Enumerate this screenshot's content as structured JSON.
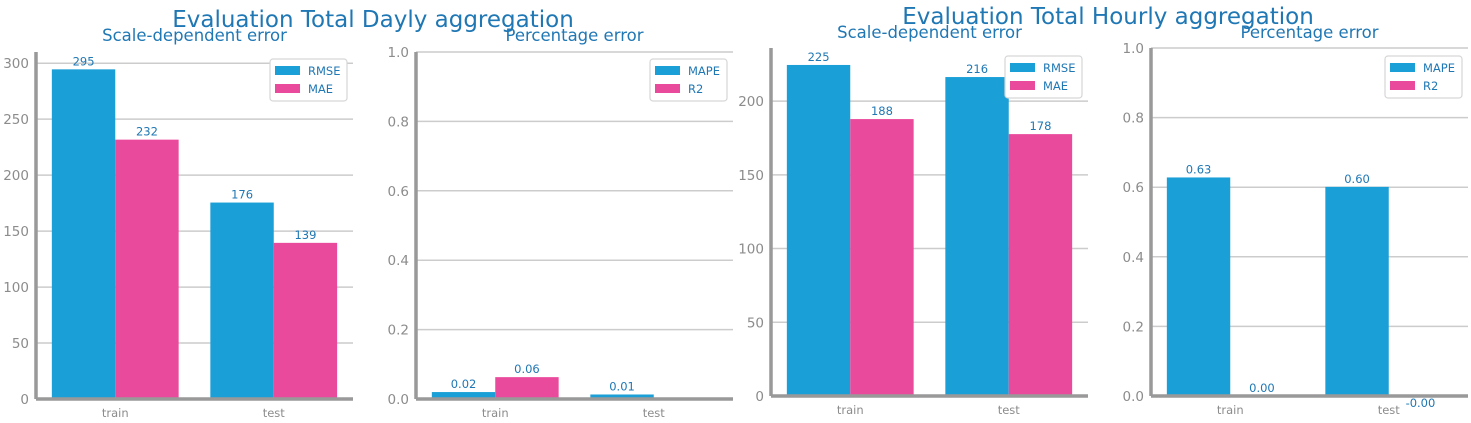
{
  "colors": {
    "series1": "#1a9fd6",
    "series2": "#ea4a9c",
    "text": "#1f77b4",
    "axis": "#999999",
    "grid": "#cccccc",
    "tick": "#8c8c8c"
  },
  "groups": [
    {
      "suptitle": "Evaluation Total Dayly aggregation"
    },
    {
      "suptitle": "Evaluation Total Hourly aggregation"
    }
  ],
  "chart_data": [
    {
      "type": "bar",
      "title": "Scale-dependent error",
      "categories": [
        "train",
        "test"
      ],
      "series": [
        {
          "name": "RMSE",
          "values": [
            294.5,
            175.5
          ],
          "labels": [
            "295",
            "176"
          ]
        },
        {
          "name": "MAE",
          "values": [
            231.7,
            139.5
          ],
          "labels": [
            "232",
            "139"
          ]
        }
      ],
      "ylim": [
        0,
        310
      ],
      "yticks": [
        0,
        50,
        100,
        150,
        200,
        250,
        300
      ],
      "ytick_labels": [
        "0",
        "50",
        "100",
        "150",
        "200",
        "250",
        "300"
      ],
      "grid": true,
      "legend": "top-right"
    },
    {
      "type": "bar",
      "title": "Percentage error",
      "categories": [
        "train",
        "test"
      ],
      "series": [
        {
          "name": "MAPE",
          "values": [
            0.02,
            0.013
          ],
          "labels": [
            "0.02",
            "0.01"
          ]
        },
        {
          "name": "R2",
          "values": [
            0.063,
            0.0
          ],
          "labels": [
            "0.06",
            ""
          ]
        }
      ],
      "ylim": [
        0,
        1.0
      ],
      "yticks": [
        0,
        0.2,
        0.4,
        0.6,
        0.8,
        1.0
      ],
      "ytick_labels": [
        "0.0",
        "0.2",
        "0.4",
        "0.6",
        "0.8",
        "1.0"
      ],
      "grid": true,
      "legend": "top-right"
    },
    {
      "type": "bar",
      "title": "Scale-dependent error",
      "categories": [
        "train",
        "test"
      ],
      "series": [
        {
          "name": "RMSE",
          "values": [
            224.5,
            216.3
          ],
          "labels": [
            "225",
            "216"
          ]
        },
        {
          "name": "MAE",
          "values": [
            187.8,
            177.6
          ],
          "labels": [
            "188",
            "178"
          ]
        }
      ],
      "ylim": [
        0,
        236
      ],
      "yticks": [
        0,
        50,
        100,
        150,
        200
      ],
      "ytick_labels": [
        "0",
        "50",
        "100",
        "150",
        "200"
      ],
      "grid": true,
      "legend": "top-right"
    },
    {
      "type": "bar",
      "title": "Percentage error",
      "categories": [
        "train",
        "test"
      ],
      "series": [
        {
          "name": "MAPE",
          "values": [
            0.628,
            0.601
          ],
          "labels": [
            "0.63",
            "0.60"
          ]
        },
        {
          "name": "R2",
          "values": [
            0.0,
            -0.001
          ],
          "labels": [
            "0.00",
            "-0.00"
          ]
        }
      ],
      "ylim": [
        0,
        1.0
      ],
      "yticks": [
        0,
        0.2,
        0.4,
        0.6,
        0.8,
        1.0
      ],
      "ytick_labels": [
        "0.0",
        "0.2",
        "0.4",
        "0.6",
        "0.8",
        "1.0"
      ],
      "grid": true,
      "legend": "top-right"
    }
  ]
}
